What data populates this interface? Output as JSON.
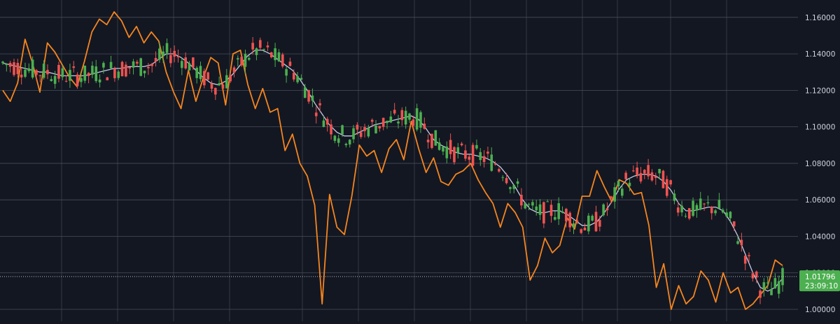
{
  "colors": {
    "background": "#131722",
    "grid": "#4a4e59",
    "axis_text": "#d1d4dc",
    "candle_up": "#26a69a",
    "candle_up_fill": "#4caf50",
    "candle_down": "#ef5350",
    "ma_line": "#c5cbe6",
    "overlay_line": "#f5851f",
    "last_price_badge": "#4caf50",
    "last_price_badge_text": "#ffffff",
    "overlay_marker": "#42a5f5"
  },
  "price_axis": {
    "ticks": [
      "1.16000",
      "1.14000",
      "1.12000",
      "1.10000",
      "1.08000",
      "1.06000",
      "1.04000",
      "1.02000",
      "1.00000"
    ]
  },
  "last_price": {
    "value": "1.01796",
    "countdown": "23:09:10"
  },
  "chart_data": {
    "type": "candlestick",
    "ylim": [
      0.9935,
      1.1695
    ],
    "grid": true,
    "candles": [],
    "ma": [
      1.135,
      1.134,
      1.133,
      1.132,
      1.131,
      1.13,
      1.13,
      1.129,
      1.128,
      1.128,
      1.128,
      1.128,
      1.129,
      1.13,
      1.131,
      1.132,
      1.132,
      1.133,
      1.133,
      1.133,
      1.134,
      1.137,
      1.14,
      1.14,
      1.138,
      1.135,
      1.131,
      1.127,
      1.124,
      1.123,
      1.125,
      1.129,
      1.134,
      1.139,
      1.142,
      1.142,
      1.14,
      1.137,
      1.134,
      1.131,
      1.126,
      1.12,
      1.113,
      1.107,
      1.101,
      1.097,
      1.095,
      1.095,
      1.097,
      1.099,
      1.101,
      1.102,
      1.103,
      1.104,
      1.105,
      1.106,
      1.104,
      1.099,
      1.093,
      1.09,
      1.088,
      1.086,
      1.085,
      1.085,
      1.084,
      1.083,
      1.081,
      1.078,
      1.073,
      1.067,
      1.06,
      1.055,
      1.053,
      1.053,
      1.054,
      1.054,
      1.052,
      1.049,
      1.046,
      1.046,
      1.048,
      1.053,
      1.059,
      1.066,
      1.071,
      1.073,
      1.074,
      1.074,
      1.073,
      1.07,
      1.065,
      1.058,
      1.054,
      1.054,
      1.055,
      1.056,
      1.056,
      1.054,
      1.048,
      1.04,
      1.03,
      1.02,
      1.012,
      1.01,
      1.012,
      1.017
    ],
    "overlay": [
      1.12,
      1.114,
      1.124,
      1.148,
      1.135,
      1.119,
      1.146,
      1.141,
      1.134,
      1.127,
      1.122,
      1.136,
      1.152,
      1.159,
      1.156,
      1.163,
      1.158,
      1.149,
      1.155,
      1.146,
      1.152,
      1.147,
      1.13,
      1.119,
      1.11,
      1.131,
      1.114,
      1.127,
      1.138,
      1.135,
      1.112,
      1.14,
      1.142,
      1.123,
      1.11,
      1.121,
      1.108,
      1.11,
      1.087,
      1.096,
      1.08,
      1.073,
      1.057,
      1.003,
      1.063,
      1.045,
      1.041,
      1.062,
      1.09,
      1.084,
      1.087,
      1.075,
      1.088,
      1.093,
      1.082,
      1.103,
      1.088,
      1.075,
      1.083,
      1.07,
      1.068,
      1.074,
      1.076,
      1.08,
      1.071,
      1.064,
      1.058,
      1.045,
      1.058,
      1.053,
      1.045,
      1.016,
      1.024,
      1.039,
      1.031,
      1.035,
      1.05,
      1.044,
      1.062,
      1.062,
      1.076,
      1.067,
      1.059,
      1.071,
      1.069,
      1.063,
      1.064,
      1.046,
      1.012,
      1.025,
      1.0,
      1.013,
      1.003,
      1.007,
      1.021,
      1.016,
      1.004,
      1.02,
      1.009,
      1.012,
      1.0,
      1.003,
      1.008,
      1.013,
      1.027,
      1.024
    ]
  }
}
